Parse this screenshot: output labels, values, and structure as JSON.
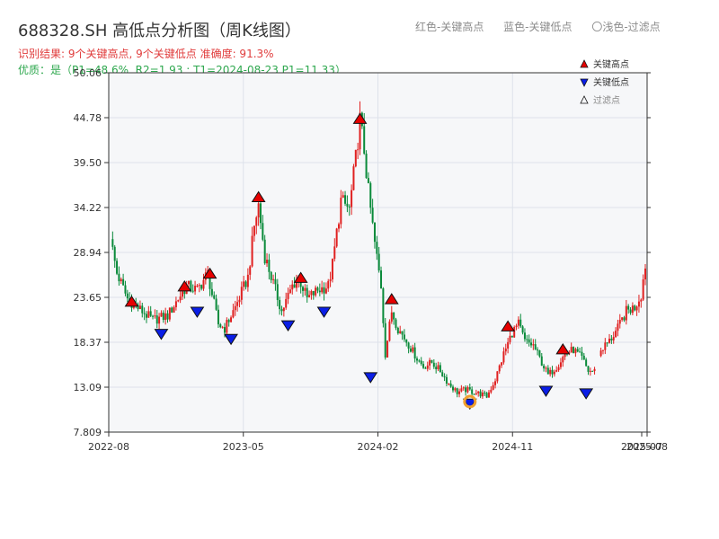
{
  "header": {
    "title": "688328.SH 高低点分析图（周K线图）",
    "result_line": "识别结果: 9个关键高点, 9个关键低点  准确度: 91.3%",
    "quality_line": "优质：是（P1=48.6%, R2=1.93 ; T1=2024-08-23 P1=11.33）",
    "legend_red": "红色-关键高点",
    "legend_blue": "蓝色-关键低点",
    "legend_light": "〇浅色-过滤点"
  },
  "colors": {
    "up": "#e02020",
    "down": "#0a8a3a",
    "high_marker": "#e60000",
    "low_marker": "#0a1ee6",
    "filtered_ring": "#f0a030",
    "plot_bg": "#f6f7f9",
    "grid": "#dde2ea"
  },
  "chart_data": {
    "type": "candlestick",
    "y_ticks": [
      "50.06",
      "44.78",
      "39.50",
      "34.22",
      "28.94",
      "23.65",
      "18.37",
      "13.09",
      "7.809"
    ],
    "ylim": [
      7.809,
      50.06
    ],
    "x_ticks": [
      {
        "date": "2022-08",
        "pos": 0.0
      },
      {
        "date": "2023-05",
        "pos": 0.25
      },
      {
        "date": "2024-02",
        "pos": 0.5
      },
      {
        "date": "2024-11",
        "pos": 0.75
      },
      {
        "date": "2025-07",
        "pos": 0.99
      },
      {
        "date": "2025-08",
        "pos": 1.0
      }
    ],
    "legend": {
      "placement": "top-right",
      "items": [
        {
          "label": "关键高点",
          "marker": "triangle-up",
          "color": "#e60000"
        },
        {
          "label": "关键低点",
          "marker": "triangle-down",
          "color": "#0a1ee6"
        },
        {
          "label": "过滤点",
          "marker": "triangle-up-hollow",
          "color": "#333333"
        }
      ]
    },
    "anchors": [
      [
        0,
        30.5
      ],
      [
        3,
        26.5
      ],
      [
        8,
        23.5
      ],
      [
        14,
        22.2
      ],
      [
        20,
        21.0
      ],
      [
        27,
        21.5
      ],
      [
        32,
        23.5
      ],
      [
        36,
        25.0
      ],
      [
        41,
        24.5
      ],
      [
        46,
        26.5
      ],
      [
        48,
        24.0
      ],
      [
        51,
        20.5
      ],
      [
        54,
        20.0
      ],
      [
        59,
        22.5
      ],
      [
        65,
        26.0
      ],
      [
        68,
        32.0
      ],
      [
        70,
        34.5
      ],
      [
        73,
        28.5
      ],
      [
        78,
        24.5
      ],
      [
        81,
        22.0
      ],
      [
        86,
        25.0
      ],
      [
        89,
        26.0
      ],
      [
        93,
        23.5
      ],
      [
        98,
        24.5
      ],
      [
        103,
        25.0
      ],
      [
        105,
        27.5
      ],
      [
        109,
        35.0
      ],
      [
        113,
        34.0
      ],
      [
        116,
        40.0
      ],
      [
        118,
        44.5
      ],
      [
        120,
        41.0
      ],
      [
        122,
        36.0
      ],
      [
        125,
        30.0
      ],
      [
        128,
        25.0
      ],
      [
        130,
        17.0
      ],
      [
        133,
        22.0
      ],
      [
        136,
        20.0
      ],
      [
        140,
        18.5
      ],
      [
        145,
        16.5
      ],
      [
        148,
        15.5
      ],
      [
        152,
        16.0
      ],
      [
        156,
        15.0
      ],
      [
        160,
        13.5
      ],
      [
        164,
        12.5
      ],
      [
        168,
        12.8
      ],
      [
        172,
        12.5
      ],
      [
        175,
        12.3
      ],
      [
        178,
        12.0
      ],
      [
        182,
        14.0
      ],
      [
        186,
        17.0
      ],
      [
        190,
        19.5
      ],
      [
        193,
        20.5
      ],
      [
        196,
        18.5
      ],
      [
        200,
        18.0
      ],
      [
        204,
        16.0
      ],
      [
        207,
        14.5
      ],
      [
        211,
        15.5
      ],
      [
        215,
        17.0
      ],
      [
        219,
        17.5
      ],
      [
        223,
        16.5
      ],
      [
        226,
        15.0
      ],
      [
        229,
        15.0
      ],
      [
        232,
        17.5
      ],
      [
        236,
        18.5
      ],
      [
        240,
        20.0
      ],
      [
        244,
        22.0
      ],
      [
        248,
        22.5
      ],
      [
        251,
        24.0
      ],
      [
        253,
        27.5
      ]
    ],
    "gaps": [
      [
        230,
        231
      ]
    ],
    "highs": [
      {
        "i": 10,
        "price": 22.5
      },
      {
        "i": 35,
        "price": 24.3
      },
      {
        "i": 47,
        "price": 25.8
      },
      {
        "i": 70,
        "price": 34.8
      },
      {
        "i": 90,
        "price": 25.3
      },
      {
        "i": 118,
        "price": 44.0
      },
      {
        "i": 133,
        "price": 22.8
      },
      {
        "i": 188,
        "price": 19.6
      },
      {
        "i": 214,
        "price": 16.9
      }
    ],
    "lows": [
      {
        "i": 24,
        "price": 20.0
      },
      {
        "i": 41,
        "price": 22.6
      },
      {
        "i": 57,
        "price": 19.4
      },
      {
        "i": 84,
        "price": 21.0
      },
      {
        "i": 101,
        "price": 22.6
      },
      {
        "i": 123,
        "price": 14.9
      },
      {
        "i": 206,
        "price": 13.3
      },
      {
        "i": 225,
        "price": 13.0
      },
      {
        "i": 170,
        "price": 11.8
      }
    ],
    "filtered": [
      {
        "i": 170,
        "price": 11.4
      }
    ]
  }
}
